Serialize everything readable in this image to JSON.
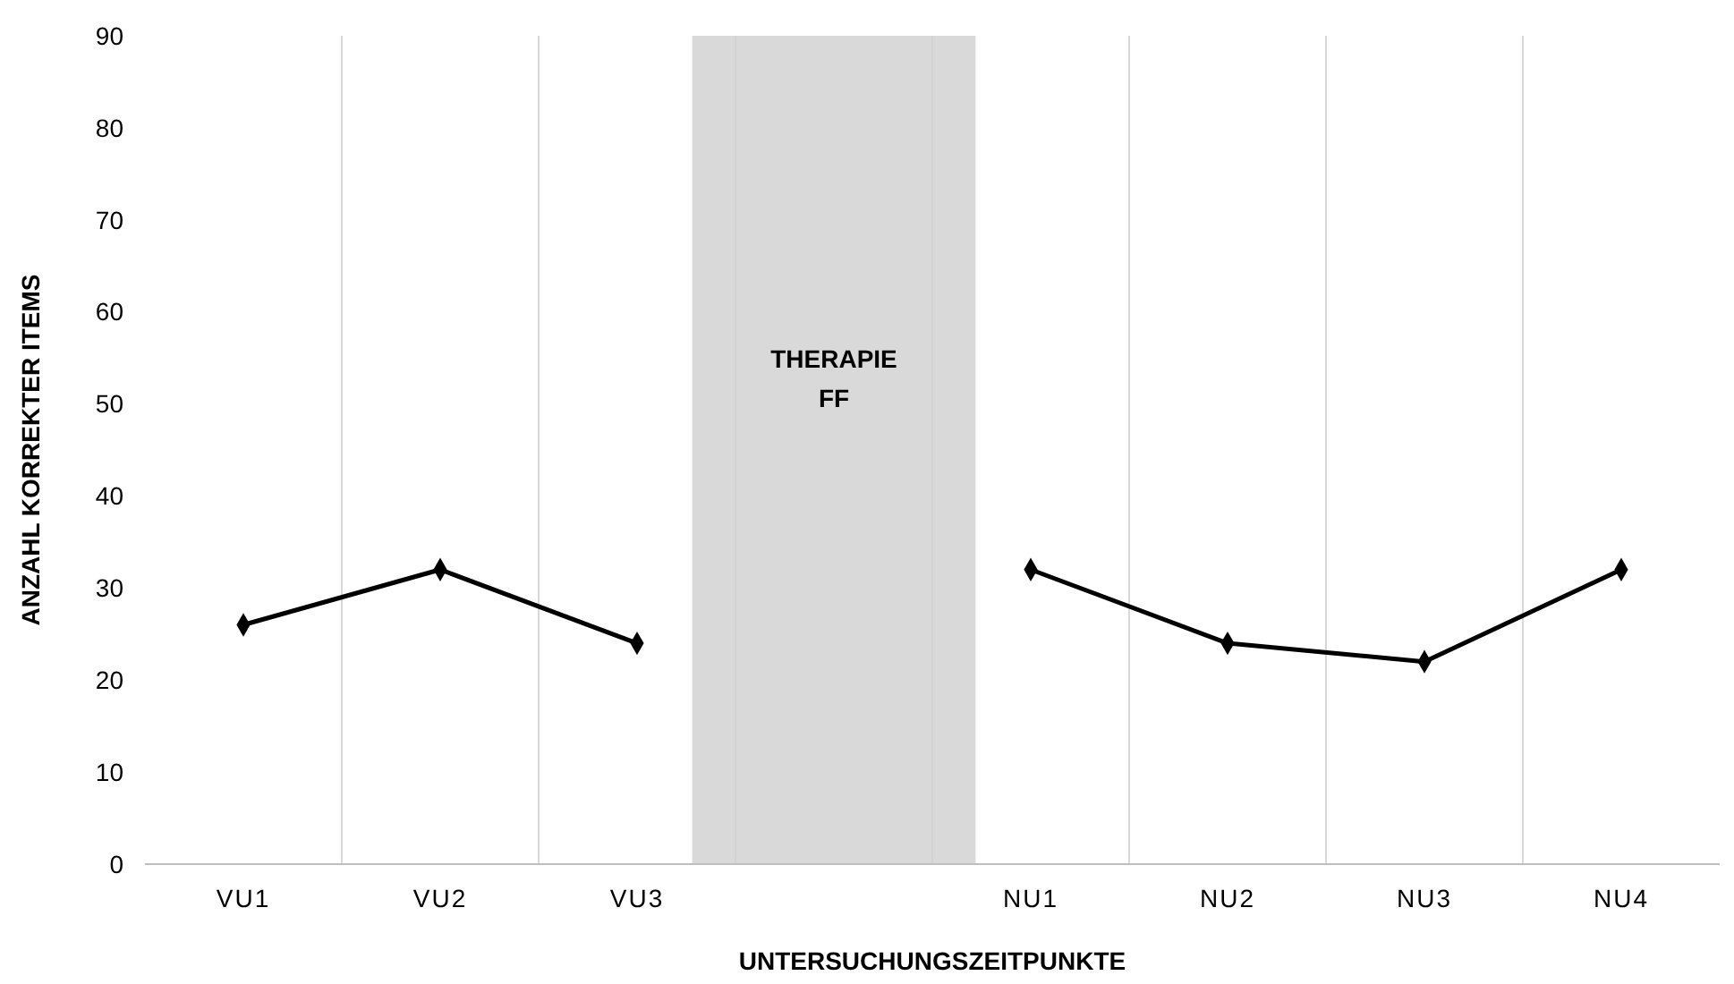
{
  "chart_data": {
    "type": "line",
    "xlabel": "UNTERSUCHUNGSZEITPUNKTE",
    "ylabel": "ANZAHL KORREKTER ITEMS",
    "categories": [
      "VU1",
      "VU2",
      "VU3",
      null,
      "NU1",
      "NU2",
      "NU3",
      "NU4"
    ],
    "series": [
      {
        "type": "bar",
        "color": "#d9d9d9",
        "values": [
          null,
          null,
          null,
          90,
          null,
          null,
          null,
          null
        ]
      },
      {
        "color": "#000000",
        "values": [
          26,
          32,
          24,
          null,
          32,
          24,
          22,
          32
        ]
      }
    ],
    "annotations": [
      "THERAPIE\nFF"
    ],
    "ylim": [
      0,
      90
    ],
    "yticks": [
      0,
      10,
      20,
      30,
      40,
      50,
      60,
      70,
      80,
      90
    ],
    "grid": "x",
    "marker": "diamond",
    "line_style": "solid"
  }
}
